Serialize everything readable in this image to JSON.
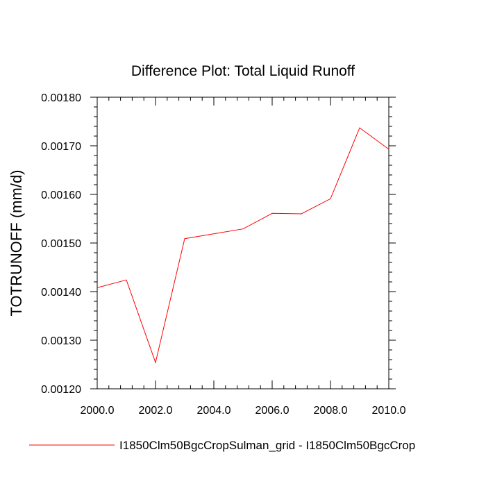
{
  "chart_data": {
    "type": "line",
    "title": "Difference Plot: Total Liquid Runoff",
    "xlabel": "",
    "ylabel": "TOTRUNOFF  (mm/d)",
    "xlim": [
      2000.0,
      2010.0
    ],
    "ylim": [
      0.0012,
      0.0018
    ],
    "xticks": [
      "2000.0",
      "2002.0",
      "2004.0",
      "2006.0",
      "2008.0",
      "2010.0"
    ],
    "yticks": [
      "0.00120",
      "0.00130",
      "0.00140",
      "0.00150",
      "0.00160",
      "0.00170",
      "0.00180"
    ],
    "grid": false,
    "legend_position": "bottom",
    "series": [
      {
        "name": "I1850Clm50BgcCropSulman_grid - I1850Clm50BgcCrop",
        "color": "#ff0000",
        "x": [
          2000,
          2001,
          2002,
          2003,
          2004,
          2005,
          2006,
          2007,
          2008,
          2009,
          2010
        ],
        "y": [
          0.001408,
          0.001424,
          0.001254,
          0.001509,
          0.001519,
          0.001529,
          0.001561,
          0.00156,
          0.001591,
          0.001737,
          0.001693
        ]
      }
    ]
  }
}
